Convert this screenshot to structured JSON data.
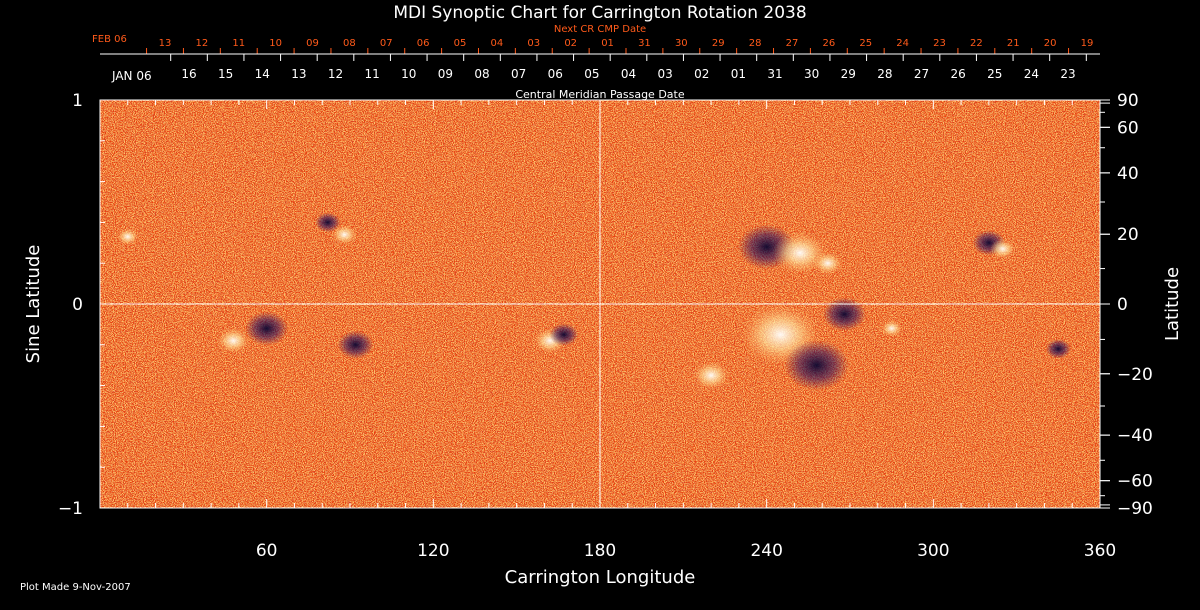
{
  "chart_data": {
    "type": "heatmap",
    "title": "MDI Synoptic Chart for Carrington Rotation 2038",
    "xlabel": "Carrington Longitude",
    "ylabel_left": "Sine Latitude",
    "ylabel_right": "Latitude",
    "xlim": [
      0,
      360
    ],
    "ylim": [
      -1,
      1
    ],
    "x_ticks": [
      60,
      120,
      180,
      240,
      300,
      360
    ],
    "y_ticks_left": [
      {
        "v": 1,
        "label": "1"
      },
      {
        "v": 0,
        "label": "0"
      },
      {
        "v": -1,
        "label": "−1"
      }
    ],
    "y_ticks_right": [
      90,
      60,
      40,
      20,
      0,
      -20,
      -40,
      -60,
      -90
    ],
    "y_tick_labels_right": [
      "90",
      "60",
      "40",
      "20",
      "0",
      "−20",
      "−40",
      "−60",
      "−90"
    ],
    "cmp_label": "Central Meridian Passage Date",
    "cmp_month": "JAN 06",
    "cmp_dates": [
      "16",
      "15",
      "14",
      "13",
      "12",
      "11",
      "10",
      "09",
      "08",
      "07",
      "06",
      "05",
      "04",
      "03",
      "02",
      "01",
      "31",
      "30",
      "29",
      "28",
      "27",
      "26",
      "25",
      "24",
      "23"
    ],
    "next_cmp_label": "Next CR CMP Date",
    "next_month": "FEB 06",
    "next_dates": [
      "13",
      "12",
      "11",
      "10",
      "09",
      "08",
      "07",
      "06",
      "05",
      "04",
      "03",
      "02",
      "01",
      "31",
      "30",
      "29",
      "28",
      "27",
      "26",
      "25",
      "24",
      "23",
      "22",
      "21",
      "20",
      "19"
    ],
    "footer": "Plot Made  9-Nov-2007",
    "colors": {
      "background": "#000000",
      "field_base": "#e8400e",
      "positive": "#ffffff",
      "negative": "#1a1050",
      "next_text": "#ff5a1a"
    },
    "active_regions": [
      {
        "lon": 240,
        "lat": 0.28,
        "polarity": "negative",
        "size": 1.6
      },
      {
        "lon": 252,
        "lat": 0.25,
        "polarity": "positive",
        "size": 1.5
      },
      {
        "lon": 262,
        "lat": 0.2,
        "polarity": "positive",
        "size": 0.8
      },
      {
        "lon": 245,
        "lat": -0.15,
        "polarity": "positive",
        "size": 2.2
      },
      {
        "lon": 258,
        "lat": -0.3,
        "polarity": "negative",
        "size": 1.8
      },
      {
        "lon": 268,
        "lat": -0.05,
        "polarity": "negative",
        "size": 1.2
      },
      {
        "lon": 320,
        "lat": 0.3,
        "polarity": "negative",
        "size": 0.9
      },
      {
        "lon": 325,
        "lat": 0.27,
        "polarity": "positive",
        "size": 0.7
      },
      {
        "lon": 162,
        "lat": -0.18,
        "polarity": "positive",
        "size": 0.9
      },
      {
        "lon": 167,
        "lat": -0.15,
        "polarity": "negative",
        "size": 0.8
      },
      {
        "lon": 88,
        "lat": 0.34,
        "polarity": "positive",
        "size": 0.7
      },
      {
        "lon": 82,
        "lat": 0.4,
        "polarity": "negative",
        "size": 0.7
      },
      {
        "lon": 48,
        "lat": -0.18,
        "polarity": "positive",
        "size": 0.9
      },
      {
        "lon": 60,
        "lat": -0.12,
        "polarity": "negative",
        "size": 1.2
      },
      {
        "lon": 92,
        "lat": -0.2,
        "polarity": "negative",
        "size": 1.0
      },
      {
        "lon": 10,
        "lat": 0.33,
        "polarity": "positive",
        "size": 0.6
      },
      {
        "lon": 285,
        "lat": -0.12,
        "polarity": "positive",
        "size": 0.6
      },
      {
        "lon": 345,
        "lat": -0.22,
        "polarity": "negative",
        "size": 0.7
      },
      {
        "lon": 220,
        "lat": -0.35,
        "polarity": "positive",
        "size": 1.0
      }
    ]
  }
}
